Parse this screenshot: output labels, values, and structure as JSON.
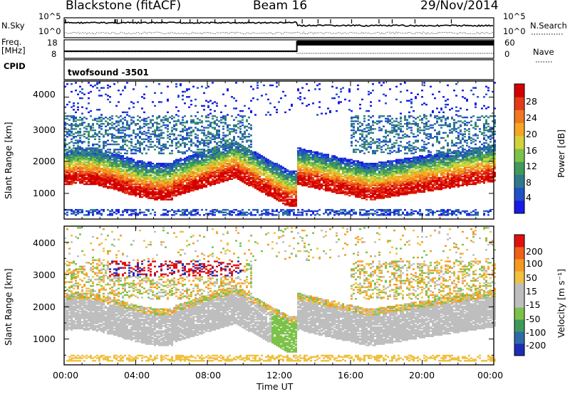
{
  "header": {
    "station": "Blackstone (fitACF)",
    "beam": "Beam 16",
    "date": "29/Nov/2014"
  },
  "strip_labels": {
    "nsky": "N.Sky",
    "nsearch": "N.Search",
    "freq": "Freq.",
    "freq_unit": "[MHz]",
    "nave": "Nave",
    "cpid": "CPID",
    "cpid_value": "twofsound -3501"
  },
  "chart_data": [
    {
      "type": "line",
      "name": "noise",
      "y_ticks": [
        "10^5",
        "10^0"
      ],
      "y_ticks_right": [
        "10^5",
        "10^0"
      ]
    },
    {
      "type": "line",
      "name": "frequency",
      "y_ticks": [
        "18",
        "8"
      ],
      "y_ticks_right": [
        "60",
        "0"
      ],
      "x": [
        "00:00",
        "13:00",
        "13:00",
        "24:00"
      ],
      "freq_level": [
        0.35,
        0.35,
        0.92,
        0.92
      ]
    },
    {
      "type": "heatmap",
      "name": "power",
      "ylabel": "Slant Range [km]",
      "ylim": [
        200,
        4500
      ],
      "y_ticks": [
        "4000",
        "3000",
        "2000",
        "1000"
      ],
      "colorbar_label": "Power [dB]",
      "colorbar_ticks": [
        "28",
        "24",
        "20",
        "16",
        "12",
        "8",
        "4"
      ],
      "colorbar_colors": [
        "#1a1ae6",
        "#1f50c8",
        "#2f7a8a",
        "#3f9a5a",
        "#7cc24a",
        "#d4d23a",
        "#f5a623",
        "#f07820",
        "#e53a18",
        "#d40000"
      ]
    },
    {
      "type": "heatmap",
      "name": "velocity",
      "ylabel": "Slant Range [km]",
      "ylim": [
        200,
        4500
      ],
      "y_ticks": [
        "4000",
        "3000",
        "2000",
        "1000"
      ],
      "colorbar_label": "Velocity [m s⁻¹]",
      "colorbar_ticks": [
        "200",
        "100",
        "50",
        "15",
        "-15",
        "-50",
        "-100",
        "-200"
      ],
      "colorbar_colors": [
        "#1e2cb4",
        "#2e6aa8",
        "#3f9a5a",
        "#7cc24a",
        "#bebebe",
        "#bebebe",
        "#f0c040",
        "#f59a20",
        "#f06018",
        "#e01010"
      ],
      "xlabel": "Time UT",
      "x_ticks": [
        "00:00",
        "04:00",
        "08:00",
        "12:00",
        "16:00",
        "20:00",
        "00:00"
      ]
    }
  ]
}
